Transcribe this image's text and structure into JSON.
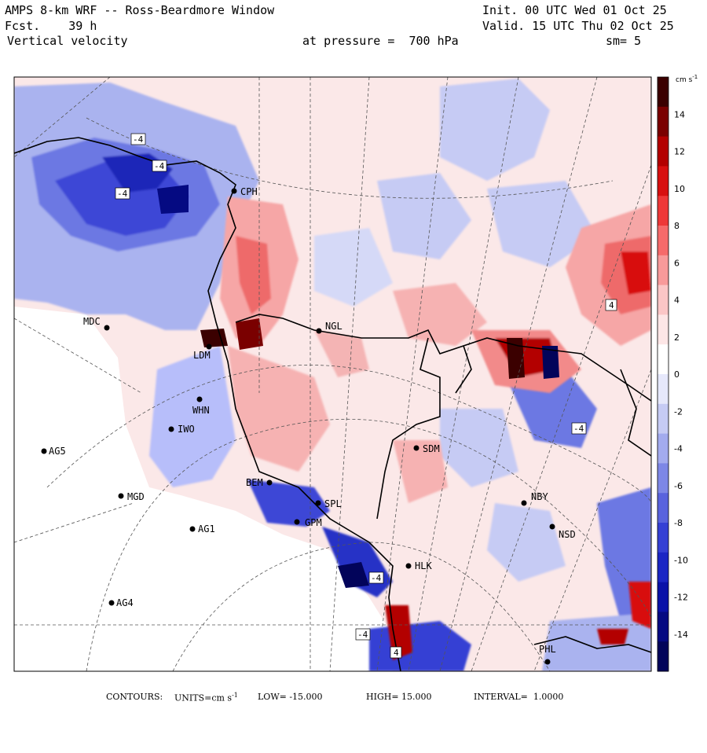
{
  "header": {
    "title": "AMPS 8-km WRF -- Ross-Beardmore Window",
    "forecast": "Fcst.    39 h",
    "field": "Vertical velocity",
    "init": "Init. 00 UTC Wed 01 Oct 25",
    "valid": "Valid. 15 UTC Thu 02 Oct 25",
    "pressure": "at pressure =  700 hPa",
    "smoothing": "sm= 5"
  },
  "colorbar": {
    "unit_label": "cm s",
    "unit_sup": "-1",
    "ticks": [
      "14",
      "12",
      "10",
      "8",
      "6",
      "4",
      "2",
      "0",
      "-2",
      "-4",
      "-6",
      "-8",
      "-10",
      "-12",
      "-14"
    ],
    "colors": [
      "#3b0000",
      "#7a0000",
      "#b30000",
      "#d81010",
      "#ee3838",
      "#f66a6a",
      "#f89a9a",
      "#fbc6c6",
      "#fde6e6",
      "#ffffff",
      "#e6e8fb",
      "#c6cbf4",
      "#a3abee",
      "#7d87e6",
      "#5963dd",
      "#3540d4",
      "#1b26c4",
      "#0a12a8",
      "#050a82",
      "#02045a"
    ]
  },
  "stations": [
    "CPH",
    "NGL",
    "MDC",
    "LDM",
    "WHN",
    "IWO",
    "AG5",
    "SDM",
    "BEM",
    "SPL",
    "GPM",
    "MGD",
    "AG1",
    "NBY",
    "NSD",
    "HLK",
    "AG4",
    "PHL"
  ],
  "contour_boxes": [
    "-4",
    "-4",
    "-4",
    "4",
    "-4",
    "-4",
    "-4",
    "4"
  ],
  "colors": {
    "up": "#f28a8a",
    "down": "#6c78e3",
    "strong_up": "#8b0000",
    "strong_down": "#0d1aa6",
    "coast": "#000000",
    "grid": "#555555"
  },
  "footer": {
    "contours": "CONTOURS:",
    "units": "UNITS=cm s",
    "units_sup": "-1",
    "low": "LOW= -15.000",
    "high": "HIGH= 15.000",
    "interval": "INTERVAL=  1.0000"
  }
}
